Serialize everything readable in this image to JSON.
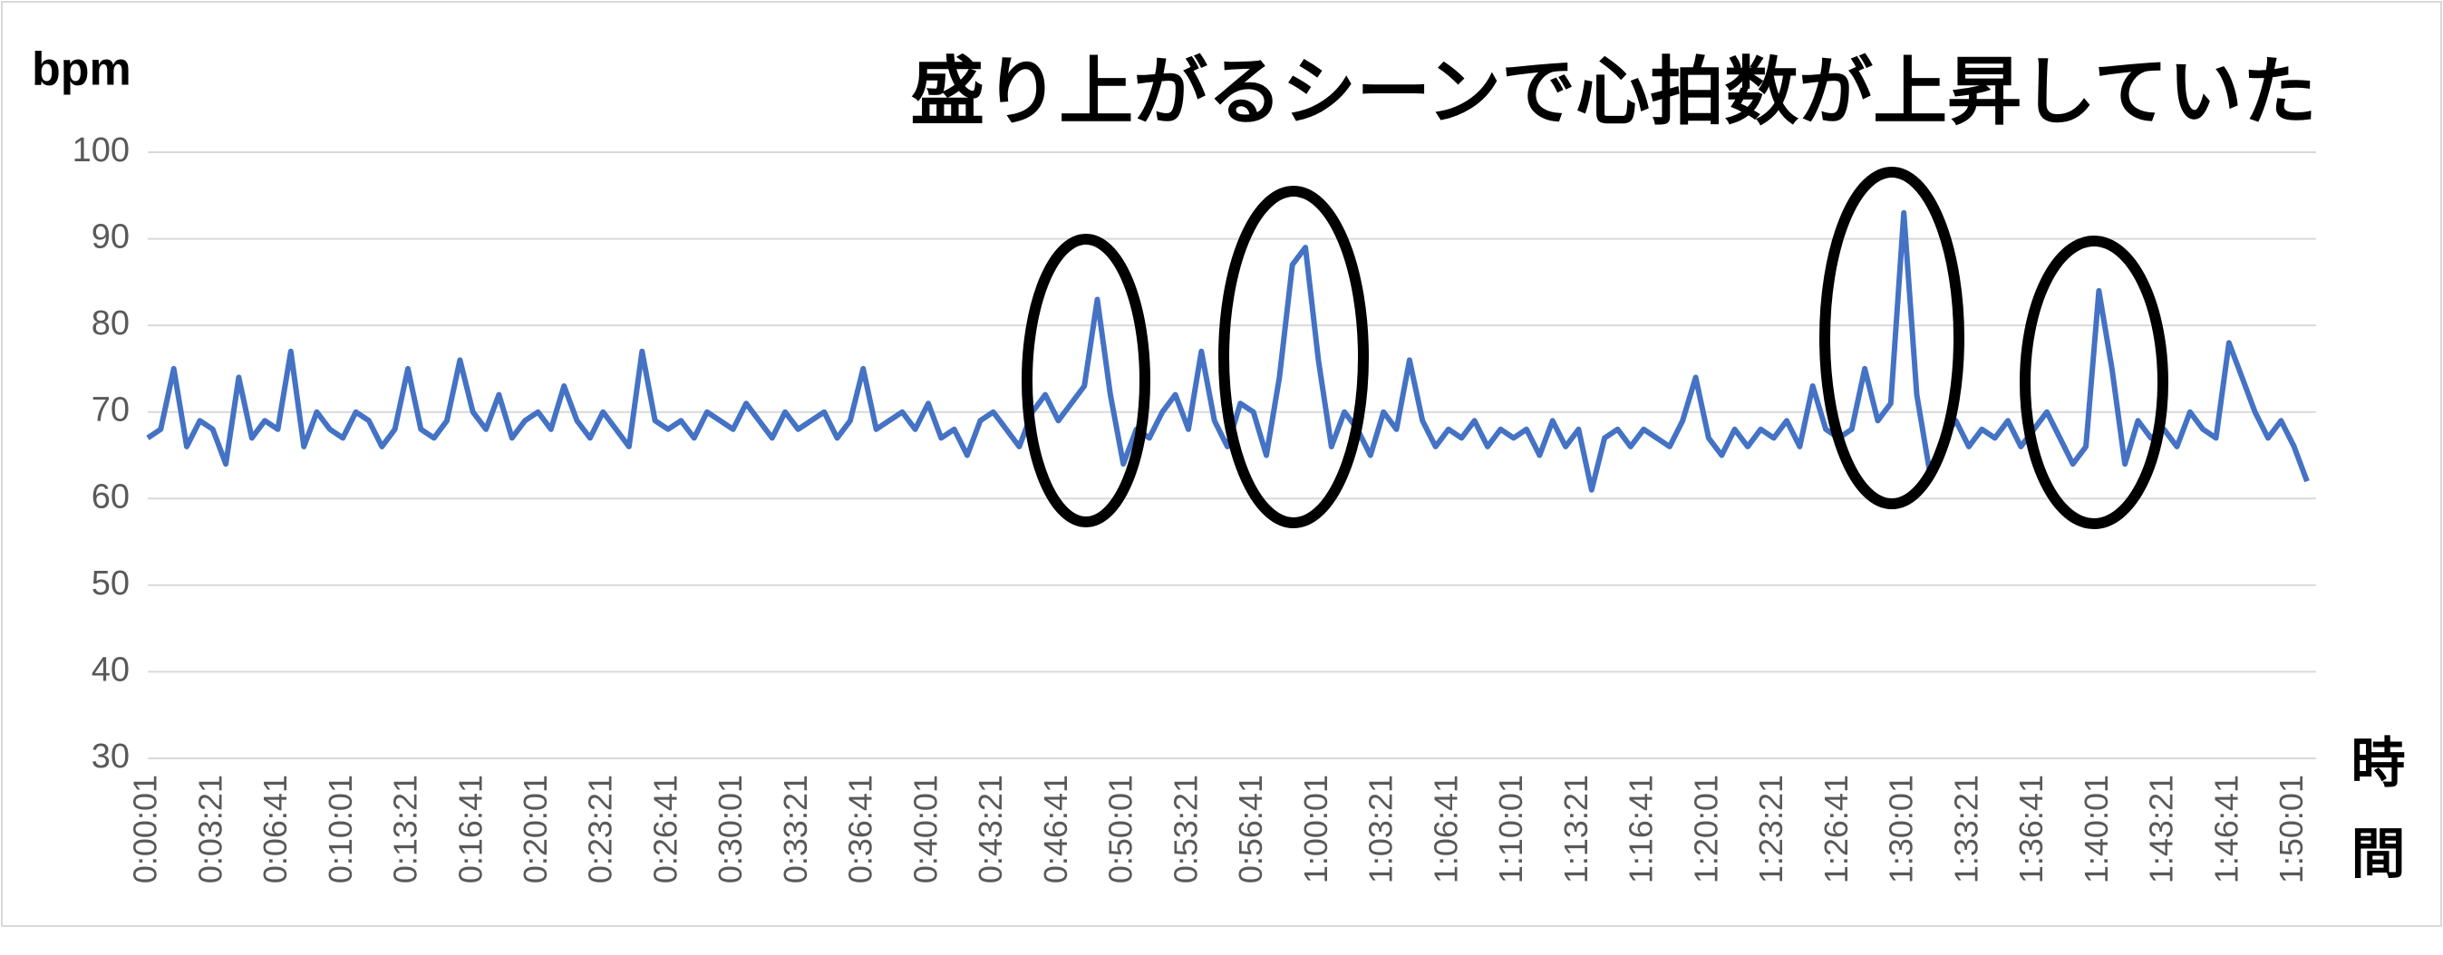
{
  "chart_data": {
    "type": "line",
    "title": "盛り上がるシーンで心拍数が上昇していた",
    "y_label": "bpm",
    "x_label": "時間",
    "categories": [
      "0:00:01",
      null,
      null,
      null,
      null,
      "0:03:21",
      null,
      null,
      null,
      null,
      "0:06:41",
      null,
      null,
      null,
      null,
      "0:10:01",
      null,
      null,
      null,
      null,
      "0:13:21",
      null,
      null,
      null,
      null,
      "0:16:41",
      null,
      null,
      null,
      null,
      "0:20:01",
      null,
      null,
      null,
      null,
      "0:23:21",
      null,
      null,
      null,
      null,
      "0:26:41",
      null,
      null,
      null,
      null,
      "0:30:01",
      null,
      null,
      null,
      null,
      "0:33:21",
      null,
      null,
      null,
      null,
      "0:36:41",
      null,
      null,
      null,
      null,
      "0:40:01",
      null,
      null,
      null,
      null,
      "0:43:21",
      null,
      null,
      null,
      null,
      "0:46:41",
      null,
      null,
      null,
      null,
      "0:50:01",
      null,
      null,
      null,
      null,
      "0:53:21",
      null,
      null,
      null,
      null,
      "0:56:41",
      null,
      null,
      null,
      null,
      "1:00:01",
      null,
      null,
      null,
      null,
      "1:03:21",
      null,
      null,
      null,
      null,
      "1:06:41",
      null,
      null,
      null,
      null,
      "1:10:01",
      null,
      null,
      null,
      null,
      "1:13:21",
      null,
      null,
      null,
      null,
      "1:16:41",
      null,
      null,
      null,
      null,
      "1:20:01",
      null,
      null,
      null,
      null,
      "1:23:21",
      null,
      null,
      null,
      null,
      "1:26:41",
      null,
      null,
      null,
      null,
      "1:30:01",
      null,
      null,
      null,
      null,
      "1:33:21",
      null,
      null,
      null,
      null,
      "1:36:41",
      null,
      null,
      null,
      null,
      "1:40:01",
      null,
      null,
      null,
      null,
      "1:43:21",
      null,
      null,
      null,
      null,
      "1:46:41",
      null,
      null,
      null,
      null,
      "1:50:01",
      null
    ],
    "series": [
      {
        "color": "#4472c4",
        "values": [
          67,
          68,
          75,
          66,
          69,
          68,
          64,
          74,
          67,
          69,
          68,
          77,
          66,
          70,
          68,
          67,
          70,
          69,
          66,
          68,
          75,
          68,
          67,
          69,
          76,
          70,
          68,
          72,
          67,
          69,
          70,
          68,
          73,
          69,
          67,
          70,
          68,
          66,
          77,
          69,
          68,
          69,
          67,
          70,
          69,
          68,
          71,
          69,
          67,
          70,
          68,
          69,
          70,
          67,
          69,
          75,
          68,
          69,
          70,
          68,
          71,
          67,
          68,
          65,
          69,
          70,
          68,
          66,
          70,
          72,
          69,
          71,
          73,
          83,
          72,
          64,
          68,
          67,
          70,
          72,
          68,
          77,
          69,
          66,
          71,
          70,
          65,
          74,
          87,
          89,
          76,
          66,
          70,
          68,
          65,
          70,
          68,
          76,
          69,
          66,
          68,
          67,
          69,
          66,
          68,
          67,
          68,
          65,
          69,
          66,
          68,
          61,
          67,
          68,
          66,
          68,
          67,
          66,
          69,
          74,
          67,
          65,
          68,
          66,
          68,
          67,
          69,
          66,
          73,
          68,
          67,
          68,
          75,
          69,
          71,
          93,
          72,
          63,
          67,
          69,
          66,
          68,
          67,
          69,
          66,
          68,
          70,
          67,
          64,
          66,
          84,
          75,
          64,
          69,
          67,
          68,
          66,
          70,
          68,
          67,
          78,
          74,
          70,
          67,
          69,
          66,
          62
        ]
      }
    ],
    "ylim": [
      30,
      100
    ],
    "yticks": [
      30,
      40,
      50,
      60,
      70,
      80,
      90,
      100
    ],
    "grid": true
  }
}
